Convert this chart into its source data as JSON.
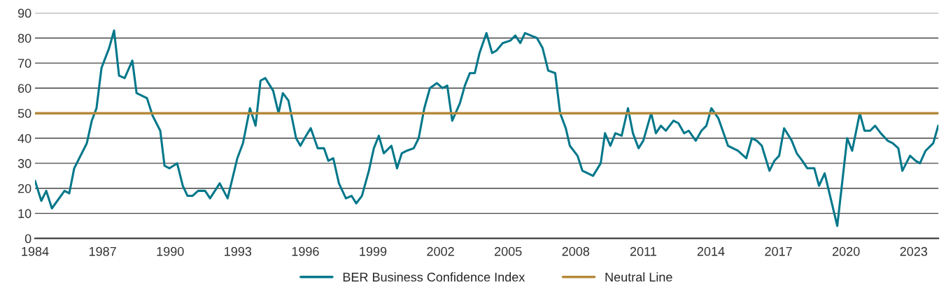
{
  "chart_data": {
    "type": "line",
    "x": [
      1984.0,
      1984.28,
      1984.5,
      1984.75,
      1985.31,
      1985.52,
      1985.74,
      1986.3,
      1986.52,
      1986.73,
      1986.95,
      1987.29,
      1987.51,
      1987.73,
      1987.98,
      1988.32,
      1988.51,
      1988.97,
      1989.22,
      1989.56,
      1989.75,
      1989.97,
      1990.31,
      1990.56,
      1990.77,
      1990.99,
      1991.24,
      1991.55,
      1991.77,
      1992.2,
      1992.55,
      1992.98,
      1993.23,
      1993.54,
      1993.79,
      1994.01,
      1994.22,
      1994.57,
      1994.81,
      1995.0,
      1995.25,
      1995.59,
      1995.78,
      1996.03,
      1996.24,
      1996.55,
      1996.83,
      1997.02,
      1997.24,
      1997.49,
      1997.8,
      1998.05,
      1998.26,
      1998.51,
      1998.82,
      1999.04,
      1999.26,
      1999.48,
      1999.82,
      2000.07,
      2000.28,
      2000.5,
      2000.81,
      2001.03,
      2001.28,
      2001.53,
      2001.84,
      2002.09,
      2002.3,
      2002.52,
      2002.86,
      2003.08,
      2003.3,
      2003.52,
      2003.73,
      2004.04,
      2004.29,
      2004.48,
      2004.76,
      2005.1,
      2005.32,
      2005.54,
      2005.75,
      2006.28,
      2006.53,
      2006.78,
      2007.09,
      2007.31,
      2007.56,
      2007.74,
      2008.08,
      2008.3,
      2008.77,
      2009.11,
      2009.3,
      2009.54,
      2009.76,
      2010.04,
      2010.32,
      2010.54,
      2010.79,
      2011.0,
      2011.35,
      2011.56,
      2011.78,
      2012.0,
      2012.34,
      2012.56,
      2012.81,
      2013.02,
      2013.33,
      2013.58,
      2013.8,
      2014.02,
      2014.33,
      2014.76,
      2015.2,
      2015.57,
      2015.82,
      2016.04,
      2016.26,
      2016.6,
      2016.82,
      2017.03,
      2017.25,
      2017.59,
      2017.81,
      2018.06,
      2018.28,
      2018.59,
      2018.8,
      2019.05,
      2019.61,
      2020.05,
      2020.27,
      2020.61,
      2020.82,
      2021.07,
      2021.29,
      2021.54,
      2021.85,
      2022.07,
      2022.32,
      2022.5,
      2022.84,
      2023.09,
      2023.28,
      2023.53,
      2023.87,
      2024.09
    ],
    "series": [
      {
        "name": "BER Business Confidence Index",
        "color": "#00778a",
        "values": [
          23,
          15,
          19,
          12,
          19,
          18,
          28,
          38,
          47,
          52,
          68,
          76,
          83,
          65,
          64,
          71,
          58,
          56,
          49,
          43,
          29,
          28,
          30,
          21,
          17,
          17,
          19,
          19,
          16,
          22,
          16,
          32,
          38,
          52,
          45,
          63,
          64,
          59,
          50,
          58,
          55,
          40,
          37,
          41,
          44,
          36,
          36,
          31,
          32,
          22,
          16,
          17,
          14,
          17,
          27,
          36,
          41,
          34,
          37,
          28,
          34,
          35,
          36,
          40,
          52,
          60,
          62,
          60,
          61,
          47,
          54,
          61,
          66,
          66,
          74,
          82,
          74,
          75,
          78,
          79,
          81,
          78,
          82,
          80,
          76,
          67,
          66,
          50,
          44,
          37,
          33,
          27,
          25,
          30,
          42,
          37,
          42,
          41,
          52,
          42,
          36,
          39,
          50,
          42,
          45,
          43,
          47,
          46,
          42,
          43,
          39,
          43,
          45,
          52,
          48,
          37,
          35,
          32,
          40,
          39,
          37,
          27,
          31,
          33,
          44,
          39,
          34,
          31,
          28,
          28,
          21,
          26,
          5,
          40,
          35,
          50,
          43,
          43,
          45,
          42,
          39,
          38,
          36,
          27,
          33,
          31,
          30,
          35,
          38,
          45
        ]
      }
    ],
    "ref_lines": [
      {
        "axis": "y",
        "value": 50,
        "label": "Neutral Line",
        "color": "#b5893b"
      }
    ],
    "xlim": [
      1984,
      2024.1
    ],
    "xticks": [
      1984,
      1987,
      1990,
      1993,
      1996,
      1999,
      2002,
      2005,
      2008,
      2011,
      2014,
      2017,
      2020,
      2023
    ],
    "ylim": [
      0,
      90
    ],
    "yticks": [
      0,
      10,
      20,
      30,
      40,
      50,
      60,
      70,
      80,
      90
    ],
    "grid": "y",
    "legend": "bottom",
    "marker": "none",
    "line_style": "solid"
  }
}
